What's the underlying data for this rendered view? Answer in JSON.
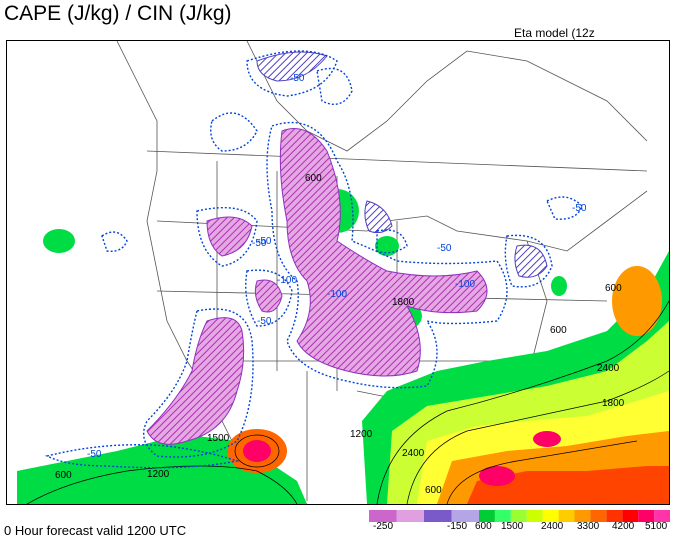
{
  "header": {
    "title": "CAPE (J/kg) / CIN (J/kg)",
    "model": "Eta model (12z"
  },
  "footer": {
    "forecast": "0 Hour forecast valid 1200 UTC"
  },
  "legend": {
    "cin_labels": [
      "-250",
      "-150"
    ],
    "cape_labels": [
      "600",
      "1500",
      "2400",
      "3300",
      "4200",
      "5100"
    ],
    "cin_colors": [
      "#cc66cc",
      "#e0a0e0",
      "#7a5ac8",
      "#b4a6e6"
    ],
    "cape_colors": [
      "#00cc33",
      "#33ff66",
      "#99ff33",
      "#ccff00",
      "#ffff00",
      "#ffcc00",
      "#ff9900",
      "#ff6600",
      "#ff3300",
      "#ff0000",
      "#ff0066",
      "#ff33aa"
    ]
  },
  "map": {
    "cin_contour_labels": [
      "-50",
      "-50",
      "-50",
      "-100",
      "-50",
      "-100",
      "-50",
      "-100",
      "-50",
      "-50"
    ],
    "cape_contour_labels": [
      "600",
      "600",
      "600",
      "1200",
      "1200",
      "2400",
      "2400",
      "1800",
      "600",
      "1800",
      "600",
      "1500"
    ],
    "colors": {
      "cin_dotted": "#0044dd",
      "cin_fill": "#cc44cc",
      "cape_low": "#00dd44",
      "cape_mid": "#ffff33",
      "cape_high": "#ff6600",
      "cape_peak": "#ff0066"
    }
  }
}
